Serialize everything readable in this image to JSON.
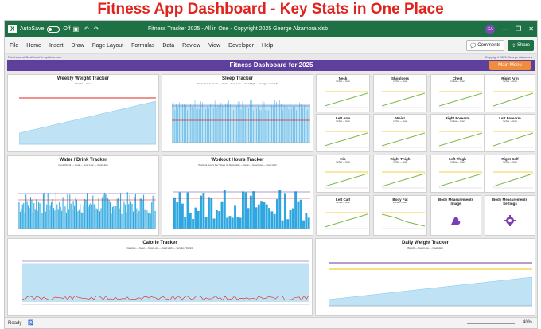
{
  "banner": "Fitness App Dashboard - Key Stats in One Place",
  "titlebar": {
    "app_icon": "X",
    "autosave_label": "AutoSave",
    "autosave_state": "Off",
    "title": "Fitness Tracker 2025 - All in One - Copyright 2025 George Alzamora.xlsb",
    "user_initials": "GA"
  },
  "menu": [
    "File",
    "Home",
    "Insert",
    "Draw",
    "Page Layout",
    "Formulas",
    "Data",
    "Review",
    "View",
    "Developer",
    "Help"
  ],
  "menu_right": {
    "comments": "Comments",
    "share": "Share"
  },
  "sheet": {
    "purchase_text": "Purchase at BestExcelTemplates.com",
    "copyright_text": "Copyright 2025 George Alzamora",
    "dashboard_title": "Fitness Dashboard for 2025",
    "main_menu_label": "Main Menu"
  },
  "panels": {
    "weekly_weight": {
      "title": "Weekly Weight Tracker",
      "legend": "Weight — Goal"
    },
    "sleep": {
      "title": "Sleep Tracker",
      "legend": "Sleep Time in Hours — Goal — Goal Low — Goal High — Energy Level (1-5)"
    },
    "water": {
      "title": "Water / Drink Tracker",
      "legend": "Cups Drank — Goal — Goal Low — Goal High"
    },
    "workout": {
      "title": "Workout Hours Tracker",
      "legend": "Workout Hours Per Week (in Decimals) — Goal — Goal Low — Goal High"
    },
    "calorie": {
      "title": "Calorie Tracker",
      "legend": "Calories — Goal — Goal Low — Goal High — Surplus / Deficit"
    },
    "daily_weight": {
      "title": "Daily Weight Tracker",
      "legend": "Weight — Goal Low — Goal High"
    }
  },
  "measurements": [
    {
      "name": "Neck",
      "legend": "Inches — Goal"
    },
    {
      "name": "Shoulders",
      "legend": "Inches — Goal"
    },
    {
      "name": "Chest",
      "legend": "Inches — Goal"
    },
    {
      "name": "Right Arm",
      "legend": "Inches — Goal"
    },
    {
      "name": "Left Arm",
      "legend": "Inches — Goal"
    },
    {
      "name": "Waist",
      "legend": "Inches — Goal"
    },
    {
      "name": "Right Forearm",
      "legend": "Inches — Goal"
    },
    {
      "name": "Left Forearm",
      "legend": "Inches — Goal"
    },
    {
      "name": "Hip",
      "legend": "Inches — Goal"
    },
    {
      "name": "Right Thigh",
      "legend": "Inches — Goal"
    },
    {
      "name": "Left Thigh",
      "legend": "Inches — Goal"
    },
    {
      "name": "Right Calf",
      "legend": "Inches — Goal"
    },
    {
      "name": "Left Calf",
      "legend": "Inches — Goal"
    },
    {
      "name": "Body Fat",
      "legend": "Percent — Goal"
    }
  ],
  "tiles": {
    "image": "Body Measurements Image",
    "settings": "Body Measurements Settings"
  },
  "status": {
    "ready": "Ready",
    "zoom": "40%"
  },
  "colors": {
    "excel_green": "#1e7145",
    "header_purple": "#5e3f9e",
    "accent_orange": "#f08c3c",
    "bar_blue": "#2ea7e0",
    "area_blue": "#bfe3f5",
    "goal_red": "#e0231c",
    "line_green": "#7ab648",
    "goal_yellow": "#f2c200"
  }
}
